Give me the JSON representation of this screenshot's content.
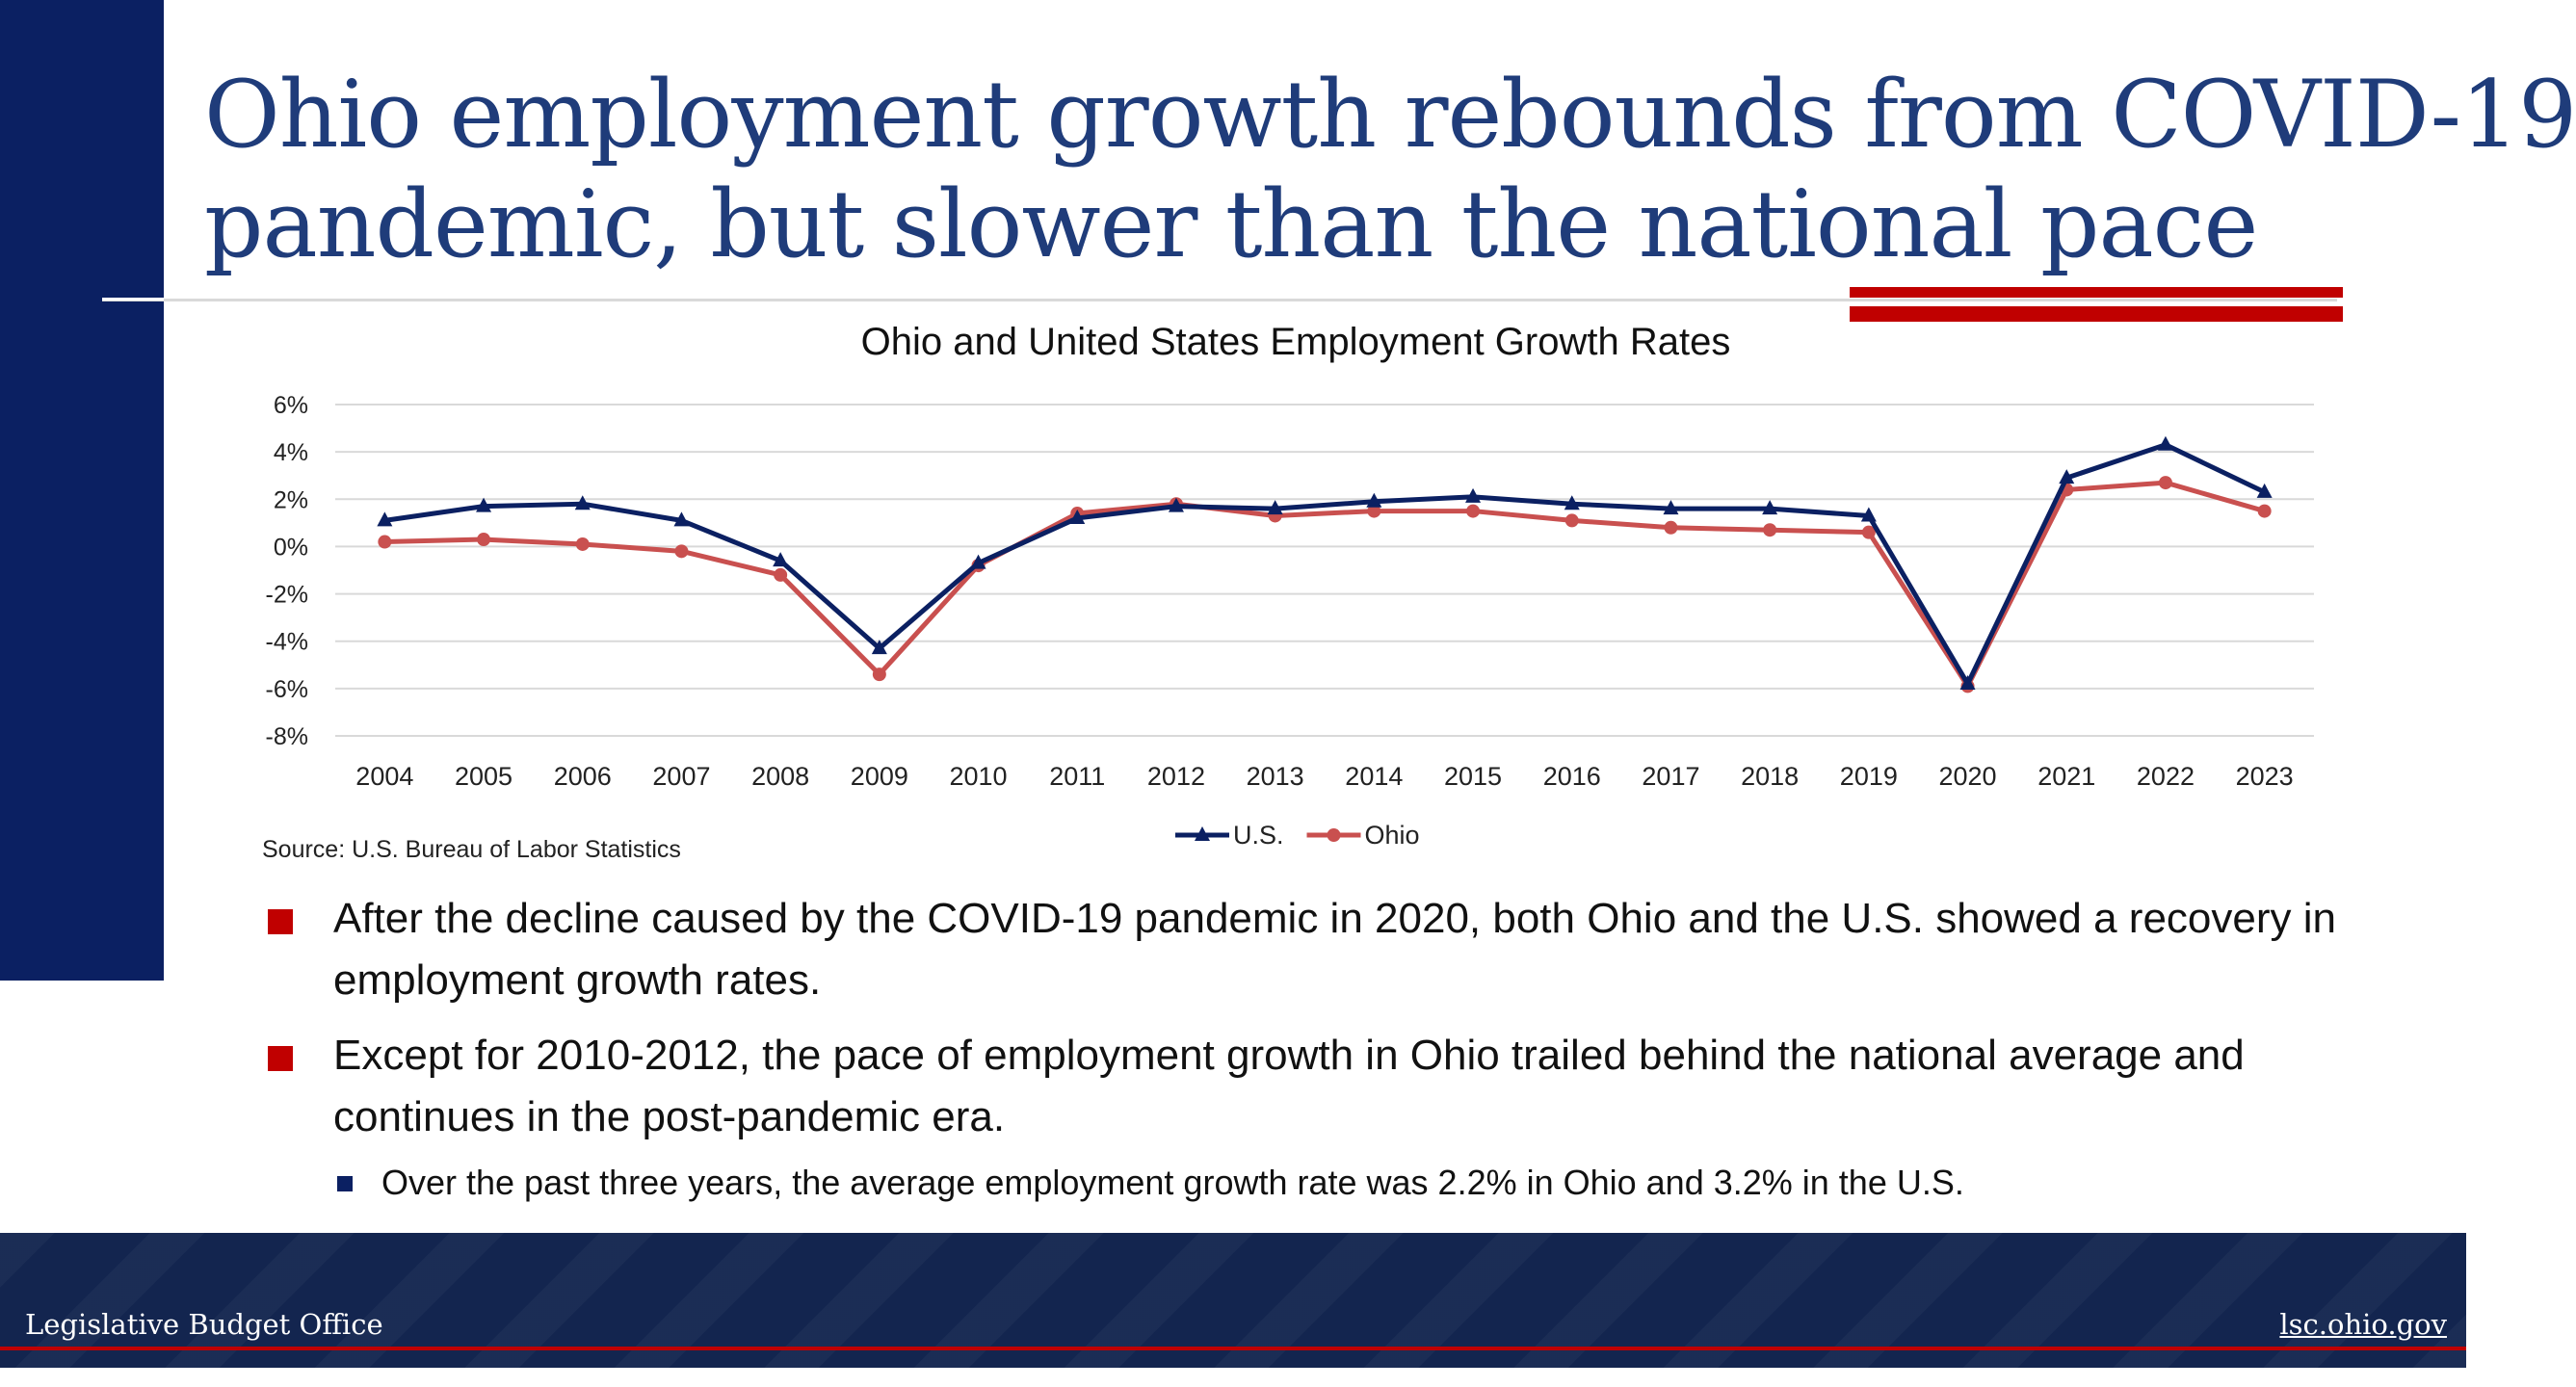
{
  "slide": {
    "title_line1": "Ohio employment growth rebounds from COVID-19",
    "title_line2": "pandemic, but slower than the national pace",
    "source": "Source: U.S. Bureau of Labor Statistics",
    "bullets": [
      "After the decline caused by the COVID-19 pandemic in 2020, both Ohio and the U.S. showed a recovery in employment growth rates.",
      "Except for 2010-2012, the pace of employment growth in Ohio trailed behind the national average and continues in the post-pandemic era."
    ],
    "subbullet": "Over the past three years, the average employment growth rate was 2.2% in Ohio and 3.2% in the U.S.",
    "footer_left": "Legislative Budget Office",
    "footer_right": "lsc.ohio.gov"
  },
  "colors": {
    "navy": "#0b2062",
    "us_series": "#0b2062",
    "ohio_series": "#c9504f",
    "accent_red": "#c00000"
  },
  "chart_data": {
    "type": "line",
    "title": "Ohio and United States Employment Growth Rates",
    "xlabel": "",
    "ylabel": "",
    "x": [
      "2004",
      "2005",
      "2006",
      "2007",
      "2008",
      "2009",
      "2010",
      "2011",
      "2012",
      "2013",
      "2014",
      "2015",
      "2016",
      "2017",
      "2018",
      "2019",
      "2020",
      "2021",
      "2022",
      "2023"
    ],
    "y_ticks": [
      "6%",
      "4%",
      "2%",
      "0%",
      "-2%",
      "-4%",
      "-6%",
      "-8%"
    ],
    "ylim": [
      -8,
      6
    ],
    "grid": true,
    "legend": "bottom-center",
    "series": [
      {
        "name": "U.S.",
        "marker": "triangle",
        "color": "#0b2062",
        "values": [
          1.1,
          1.7,
          1.8,
          1.1,
          -0.6,
          -4.3,
          -0.7,
          1.2,
          1.7,
          1.6,
          1.9,
          2.1,
          1.8,
          1.6,
          1.6,
          1.3,
          -5.8,
          2.9,
          4.3,
          2.3
        ]
      },
      {
        "name": "Ohio",
        "marker": "circle",
        "color": "#c9504f",
        "values": [
          0.2,
          0.3,
          0.1,
          -0.2,
          -1.2,
          -5.4,
          -0.8,
          1.4,
          1.8,
          1.3,
          1.5,
          1.5,
          1.1,
          0.8,
          0.7,
          0.6,
          -5.9,
          2.4,
          2.7,
          1.5
        ]
      }
    ]
  }
}
